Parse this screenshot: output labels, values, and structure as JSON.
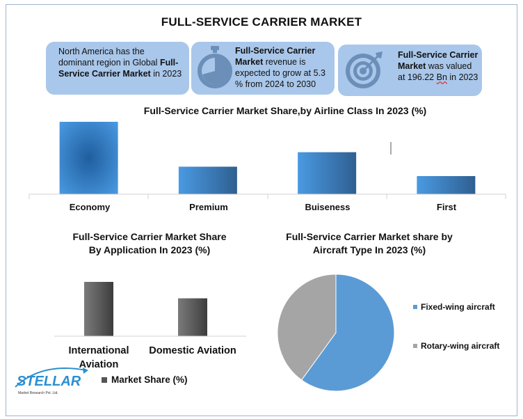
{
  "title": "FULL-SERVICE CARRIER MARKET",
  "cards": {
    "card1": {
      "text_a": "North America has the dominant region in Global ",
      "text_b": "Full-Service Carrier Market",
      "text_c": " in 2023"
    },
    "card2": {
      "text_a": "Full-Service Carrier Market",
      "text_b": " revenue is expected to grow at 5.3 % from 2024 to 2030",
      "icon": "stopwatch-icon"
    },
    "card3": {
      "text_a": "Full-Service Carrier Market",
      "text_b": " was valued at 196.22 ",
      "text_c": "Bn",
      "text_d": " in 2023",
      "icon": "target-icon"
    }
  },
  "colors": {
    "card_bg": "#a9c7ea",
    "bar_blue": "#4a8fd6",
    "bar_gray": "#555555",
    "pie_blue": "#5b9bd5",
    "pie_gray": "#a5a5a5"
  },
  "chart_data": [
    {
      "type": "bar",
      "title": "Full-Service Carrier Market Share,by Airline Class In 2023 (%)",
      "categories": [
        "Economy",
        "Premium",
        "Buiseness",
        "First"
      ],
      "values": [
        100,
        38,
        58,
        25
      ]
    },
    {
      "type": "bar",
      "title": "Full-Service Carrier Market Share By Application In 2023 (%)",
      "categories": [
        "International Aviation",
        "Domestic Aviation"
      ],
      "series": [
        {
          "name": "Market Share (%)",
          "values": [
            76,
            53
          ]
        }
      ]
    },
    {
      "type": "pie",
      "title": "Full-Service Carrier Market share by Aircraft Type In 2023 (%)",
      "labels": [
        "Fixed-wing aircraft",
        "Rotary-wing aircraft"
      ],
      "values": [
        60,
        40
      ],
      "legend_position": "right"
    }
  ],
  "chart1": {
    "title": "Full-Service Carrier Market Share,by Airline Class In 2023 (%)",
    "cat0": "Economy",
    "cat1": "Premium",
    "cat2": "Buiseness",
    "cat3": "First"
  },
  "chart2": {
    "title_line1": "Full-Service Carrier Market Share",
    "title_line2": "By Application In 2023 (%)",
    "cat0_line1": "International",
    "cat0_line2": "Aviation",
    "cat1": "Domestic Aviation",
    "legend": "Market Share (%)"
  },
  "chart3": {
    "title_line1": "Full-Service Carrier Market share by",
    "title_line2": "Aircraft Type In 2023 (%)",
    "legend0": "Fixed-wing aircraft",
    "legend1": "Rotary-wing aircraft"
  },
  "logo": {
    "name": "STELLAR",
    "sub": "Market Research Pvt. Ltd."
  }
}
